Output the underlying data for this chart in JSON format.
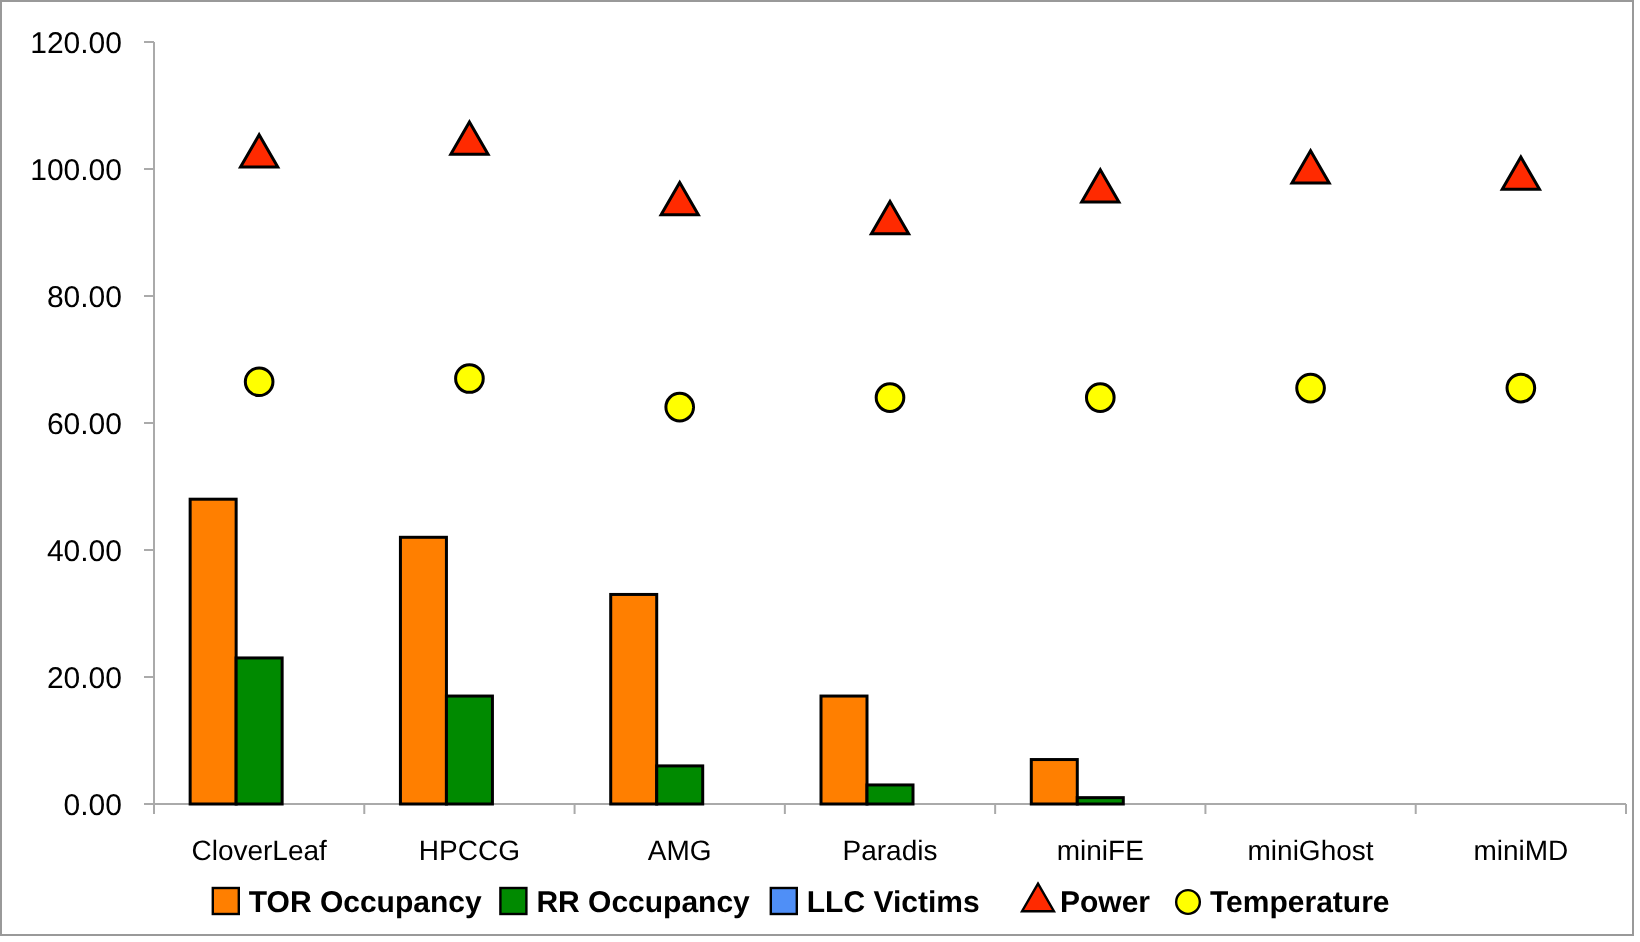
{
  "chart_data": {
    "type": "bar",
    "categories": [
      "CloverLeaf",
      "HPCCG",
      "AMG",
      "Paradis",
      "miniFE",
      "miniGhost",
      "miniMD"
    ],
    "series": [
      {
        "name": "TOR Occupancy",
        "color": "#ff7f00",
        "values": [
          48,
          42,
          33,
          17,
          7,
          null,
          null
        ]
      },
      {
        "name": "RR Occupancy",
        "color": "#008a00",
        "values": [
          23,
          17,
          6,
          3,
          1,
          null,
          null
        ]
      },
      {
        "name": "LLC Victims",
        "color": "#4f8ff7",
        "values": [
          null,
          null,
          null,
          null,
          null,
          null,
          null
        ]
      },
      {
        "name": "Power",
        "type": "scatter",
        "marker": "triangle",
        "color": "#ff2a00",
        "values": [
          102,
          104,
          94.5,
          91.5,
          96.5,
          99.5,
          98.5
        ]
      },
      {
        "name": "Temperature",
        "type": "scatter",
        "marker": "circle",
        "color": "#ffff00",
        "values": [
          66.5,
          67,
          62.5,
          64,
          64,
          65.5,
          65.5
        ]
      }
    ],
    "ylim": [
      0,
      120
    ],
    "yticks": [
      {
        "value": 0,
        "label": "0.00"
      },
      {
        "value": 20,
        "label": "20.00"
      },
      {
        "value": 40,
        "label": "40.00"
      },
      {
        "value": 60,
        "label": "60.00"
      },
      {
        "value": 80,
        "label": "80.00"
      },
      {
        "value": 100,
        "label": "100.00"
      },
      {
        "value": 120,
        "label": "120.00"
      }
    ],
    "grid": false,
    "legend": "bottom"
  }
}
